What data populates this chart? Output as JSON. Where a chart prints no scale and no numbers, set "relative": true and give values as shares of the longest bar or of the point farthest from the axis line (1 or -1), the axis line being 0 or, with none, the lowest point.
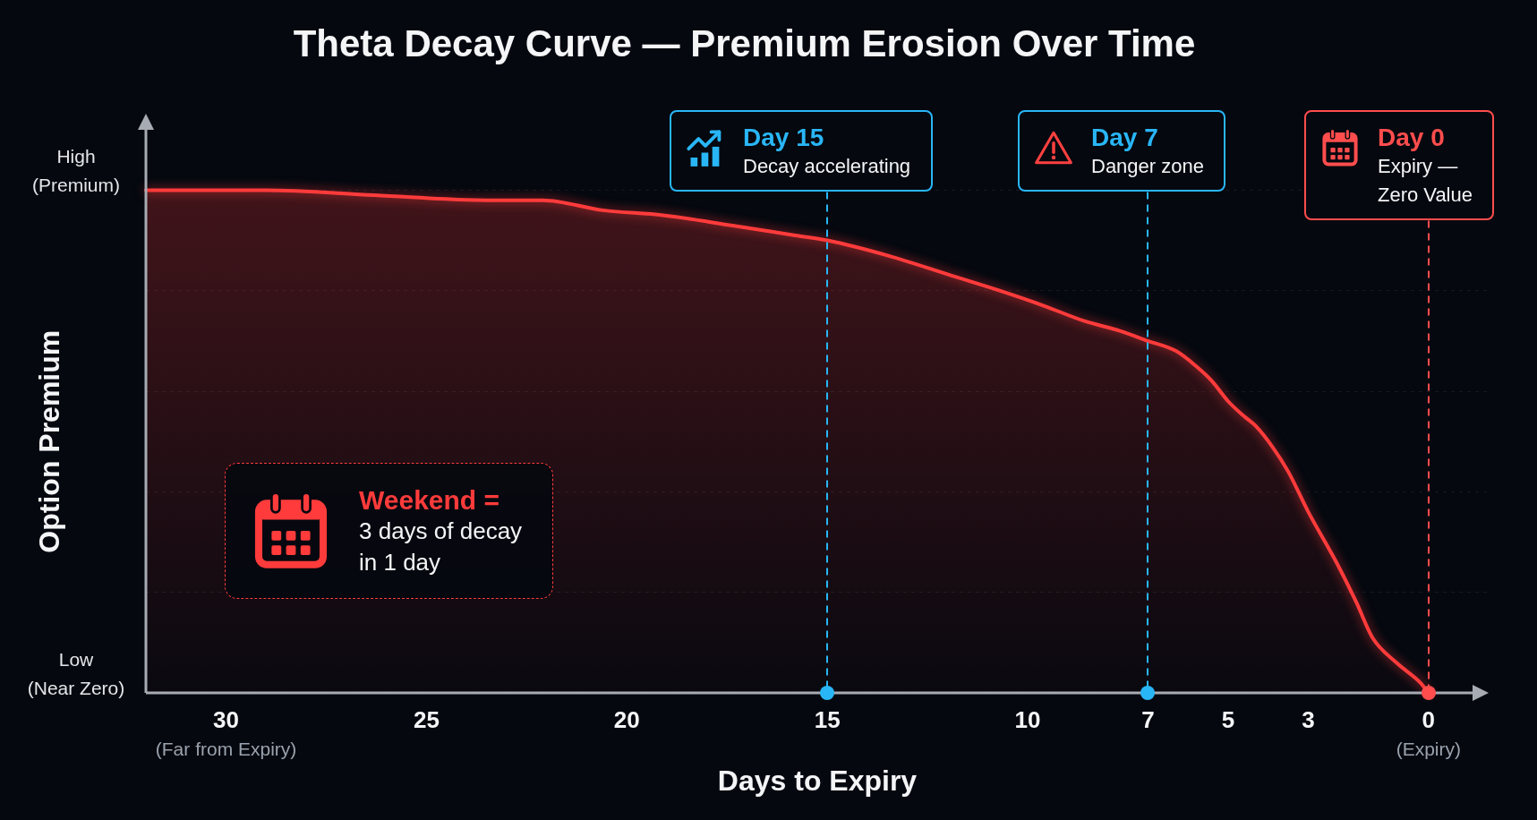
{
  "chart_data": {
    "type": "area",
    "title": "Theta Decay Curve — Premium Erosion Over Time",
    "xlabel": "Days to Expiry",
    "ylabel": "Option Premium",
    "relative": true,
    "x": [
      32,
      29,
      26.3,
      23.5,
      22.1,
      20.6,
      19.1,
      17.4,
      15.8,
      15,
      13.5,
      11.9,
      10.7,
      9.6,
      8.6,
      7.7,
      7,
      6.3,
      5.8,
      5.4,
      5,
      4.6,
      4.3,
      3.9,
      3.5,
      3,
      2.3,
      1.8,
      1.4,
      0.8,
      0.2,
      0
    ],
    "values": [
      1,
      1,
      0.99,
      0.98,
      0.98,
      0.96,
      0.95,
      0.93,
      0.91,
      0.9,
      0.87,
      0.83,
      0.8,
      0.77,
      0.74,
      0.72,
      0.7,
      0.68,
      0.65,
      0.62,
      0.58,
      0.55,
      0.53,
      0.49,
      0.44,
      0.36,
      0.26,
      0.18,
      0.11,
      0.06,
      0.02,
      0
    ],
    "color": "#ff3b3b",
    "xlim": [
      32,
      -1.5
    ],
    "xticks": [
      30,
      25,
      20,
      15,
      10,
      7,
      5,
      3,
      0
    ],
    "grid": "y",
    "marker": "none",
    "ref_lines": [
      {
        "axis": "x",
        "value": 15,
        "label": "Day 15\nDecay accelerating",
        "color": "#29b6f6",
        "line_style": "dashed"
      },
      {
        "axis": "x",
        "value": 7,
        "label": "Day 7\nDanger zone",
        "color": "#29b6f6",
        "line_style": "dashed"
      },
      {
        "axis": "x",
        "value": 0,
        "label": "Day 0\nExpiry —\nZero Value",
        "color": "#ff4d4d",
        "line_style": "dashed"
      }
    ],
    "annotations": [
      "High\n(Premium)",
      "Low\n(Near Zero)",
      "(Far from Expiry)",
      "(Expiry)",
      "Weekend =\n3 days of decay\nin 1 day"
    ]
  }
}
